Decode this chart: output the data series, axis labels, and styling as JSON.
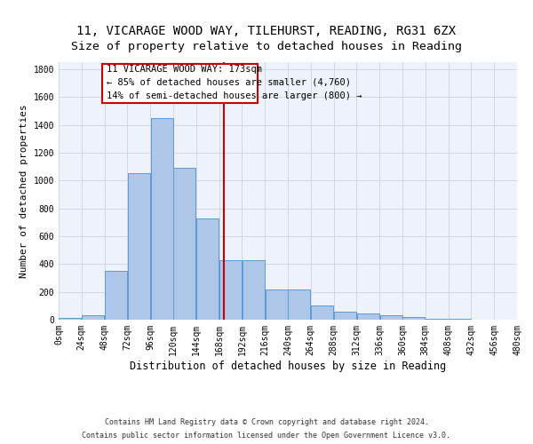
{
  "title1": "11, VICARAGE WOOD WAY, TILEHURST, READING, RG31 6ZX",
  "title2": "Size of property relative to detached houses in Reading",
  "xlabel": "Distribution of detached houses by size in Reading",
  "ylabel": "Number of detached properties",
  "footnote1": "Contains HM Land Registry data © Crown copyright and database right 2024.",
  "footnote2": "Contains public sector information licensed under the Open Government Licence v3.0.",
  "annotation_line1": "11 VICARAGE WOOD WAY: 173sqm",
  "annotation_line2": "← 85% of detached houses are smaller (4,760)",
  "annotation_line3": "14% of semi-detached houses are larger (800) →",
  "bar_values": [
    10,
    35,
    350,
    1055,
    1450,
    1090,
    730,
    430,
    430,
    220,
    215,
    100,
    55,
    45,
    30,
    20,
    5,
    5,
    2,
    0
  ],
  "bin_edges": [
    0,
    24,
    48,
    72,
    96,
    120,
    144,
    168,
    192,
    216,
    240,
    264,
    288,
    312,
    336,
    360,
    384,
    408,
    432,
    456,
    480
  ],
  "bar_color": "#aec6e8",
  "bar_edge_color": "#5b9bd5",
  "grid_color": "#d0d8e8",
  "vline_x": 173,
  "vline_color": "#cc0000",
  "box_color": "#cc0000",
  "ylim": [
    0,
    1850
  ],
  "xlim": [
    0,
    480
  ],
  "bg_color": "#eef2fa",
  "title1_fontsize": 10,
  "title2_fontsize": 9.5,
  "xlabel_fontsize": 8.5,
  "ylabel_fontsize": 8,
  "tick_fontsize": 7,
  "annotation_fontsize": 7.5,
  "footnote_fontsize": 6,
  "ytick_vals": [
    0,
    200,
    400,
    600,
    800,
    1000,
    1200,
    1400,
    1600,
    1800
  ]
}
